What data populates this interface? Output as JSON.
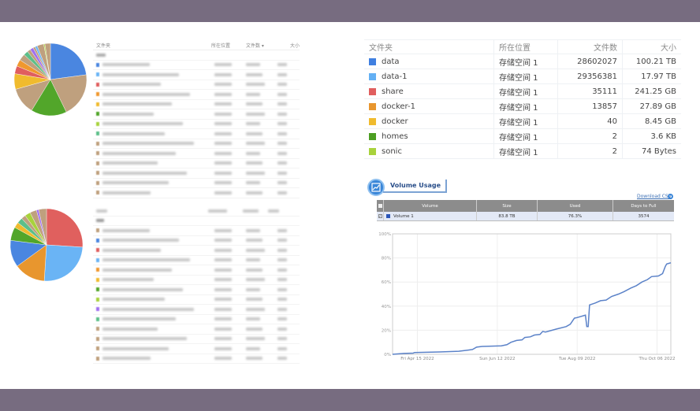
{
  "left_panels": {
    "headers": {
      "folder": "文件夹",
      "location": "所在位置",
      "count": "文件数 ▾",
      "size": "大小"
    },
    "pie_top": {
      "values": [
        23,
        20,
        16,
        12,
        7,
        3.5,
        3,
        3,
        2,
        1.5,
        1.5,
        1,
        1,
        3,
        0.5,
        2.5
      ],
      "colors": [
        "#4a86e0",
        "#bfa07e",
        "#52a62a",
        "#bfa07e",
        "#f0bb2e",
        "#e05e5e",
        "#f0982e",
        "#bfa07e",
        "#5cbf8a",
        "#bfa07e",
        "#a070f0",
        "#bfa07e",
        "#6ab4f5",
        "#bfa07e",
        "#a8d23c",
        "#bfa07e"
      ]
    },
    "pie_bottom": {
      "values": [
        26,
        25,
        14,
        12,
        6,
        2.5,
        2.5,
        2,
        2.5,
        3,
        1,
        3.5
      ],
      "colors": [
        "#e0605e",
        "#6ab4f5",
        "#e8962e",
        "#4a86e0",
        "#52a62a",
        "#f0bb2e",
        "#5cbf8a",
        "#bfa07e",
        "#a8d23c",
        "#bfa07e",
        "#a070f0",
        "#bfa07e"
      ]
    },
    "row_colors_top": [
      "#4a86e0",
      "#6ab4f5",
      "#e05e5e",
      "#f0982e",
      "#f0bb2e",
      "#52a62a",
      "#a8d23c",
      "#5cbf8a",
      "#bfa07e",
      "#bfa07e",
      "#bfa07e",
      "#bfa07e",
      "#bfa07e",
      "#bfa07e"
    ],
    "row_colors_bottom": [
      "#bfa07e",
      "#4a86e0",
      "#e05e5e",
      "#6ab4f5",
      "#f0982e",
      "#f0bb2e",
      "#52a62a",
      "#a8d23c",
      "#a070f0",
      "#5cbf8a",
      "#bfa07e",
      "#bfa07e",
      "#bfa07e",
      "#bfa07e"
    ]
  },
  "folder_table": {
    "headers": [
      "文件夹",
      "所在位置",
      "文件数",
      "大小"
    ],
    "rows": [
      {
        "name": "data",
        "location": "存储空间 1",
        "count": "28602027",
        "size": "100.21 TB",
        "color": "#3f7fe0"
      },
      {
        "name": "data-1",
        "location": "存储空间 1",
        "count": "29356381",
        "size": "17.97 TB",
        "color": "#64b0f4"
      },
      {
        "name": "share",
        "location": "存储空间 1",
        "count": "35111",
        "size": "241.25 GB",
        "color": "#e05e5e"
      },
      {
        "name": "docker-1",
        "location": "存储空间 1",
        "count": "13857",
        "size": "27.89 GB",
        "color": "#e8962e"
      },
      {
        "name": "docker",
        "location": "存储空间 1",
        "count": "40",
        "size": "8.45 GB",
        "color": "#f0bb2e"
      },
      {
        "name": "homes",
        "location": "存储空间 1",
        "count": "2",
        "size": "3.6 KB",
        "color": "#4c9e22"
      },
      {
        "name": "sonic",
        "location": "存储空间 1",
        "count": "2",
        "size": "74 Bytes",
        "color": "#a8d23c"
      }
    ]
  },
  "volume_usage": {
    "title": "Volume Usage",
    "download_label": "Download CSV",
    "headers": [
      "Volume",
      "Size",
      "Used",
      "Days to Full"
    ],
    "row": {
      "name": "Volume 1",
      "size": "83.8 TB",
      "used": "76.3%",
      "days": "3574",
      "color": "#2a55b8"
    }
  },
  "chart_data": {
    "type": "line",
    "xlim": [
      "2022-03-28",
      "2022-10-16"
    ],
    "ylim": [
      0,
      100
    ],
    "grid": true,
    "x_ticks": [
      {
        "date": "2022-04-15",
        "label": "Fri Apr 15 2022"
      },
      {
        "date": "2022-06-12",
        "label": "Sun Jun 12 2022"
      },
      {
        "date": "2022-08-09",
        "label": "Tue Aug 09 2022"
      },
      {
        "date": "2022-10-06",
        "label": "Thu Oct 06 2022"
      }
    ],
    "y_ticks": [
      {
        "value": 0,
        "label": "0%"
      },
      {
        "value": 20,
        "label": "20%"
      },
      {
        "value": 40,
        "label": "40%"
      },
      {
        "value": 60,
        "label": "60%"
      },
      {
        "value": 80,
        "label": "80%"
      },
      {
        "value": 100,
        "label": "100%"
      }
    ],
    "series": [
      {
        "color": "#5b82c8",
        "points": [
          [
            "2022-03-28",
            0
          ],
          [
            "2022-04-05",
            0.7
          ],
          [
            "2022-04-12",
            1
          ],
          [
            "2022-04-13",
            1.5
          ],
          [
            "2022-05-01",
            2
          ],
          [
            "2022-05-15",
            2.5
          ],
          [
            "2022-05-22",
            3.5
          ],
          [
            "2022-05-25",
            4
          ],
          [
            "2022-05-28",
            6
          ],
          [
            "2022-06-01",
            6.5
          ],
          [
            "2022-06-15",
            7
          ],
          [
            "2022-06-19",
            8
          ],
          [
            "2022-06-22",
            10
          ],
          [
            "2022-06-26",
            11.5
          ],
          [
            "2022-06-30",
            12
          ],
          [
            "2022-07-02",
            14
          ],
          [
            "2022-07-06",
            14.5
          ],
          [
            "2022-07-09",
            16
          ],
          [
            "2022-07-13",
            16.5
          ],
          [
            "2022-07-15",
            19
          ],
          [
            "2022-07-17",
            18.5
          ],
          [
            "2022-07-25",
            21
          ],
          [
            "2022-08-01",
            23
          ],
          [
            "2022-08-04",
            25
          ],
          [
            "2022-08-07",
            30
          ],
          [
            "2022-08-09",
            30.5
          ],
          [
            "2022-08-15",
            32.5
          ],
          [
            "2022-08-16",
            23
          ],
          [
            "2022-08-17",
            23
          ],
          [
            "2022-08-18",
            41
          ],
          [
            "2022-08-22",
            42.5
          ],
          [
            "2022-08-26",
            44.5
          ],
          [
            "2022-08-30",
            45
          ],
          [
            "2022-09-03",
            48
          ],
          [
            "2022-09-08",
            50
          ],
          [
            "2022-09-12",
            52
          ],
          [
            "2022-09-17",
            55
          ],
          [
            "2022-09-21",
            57
          ],
          [
            "2022-09-25",
            60
          ],
          [
            "2022-09-29",
            62
          ],
          [
            "2022-10-02",
            64.5
          ],
          [
            "2022-10-07",
            65
          ],
          [
            "2022-10-10",
            67
          ],
          [
            "2022-10-12",
            73
          ],
          [
            "2022-10-13",
            75
          ],
          [
            "2022-10-16",
            76
          ]
        ]
      }
    ]
  }
}
